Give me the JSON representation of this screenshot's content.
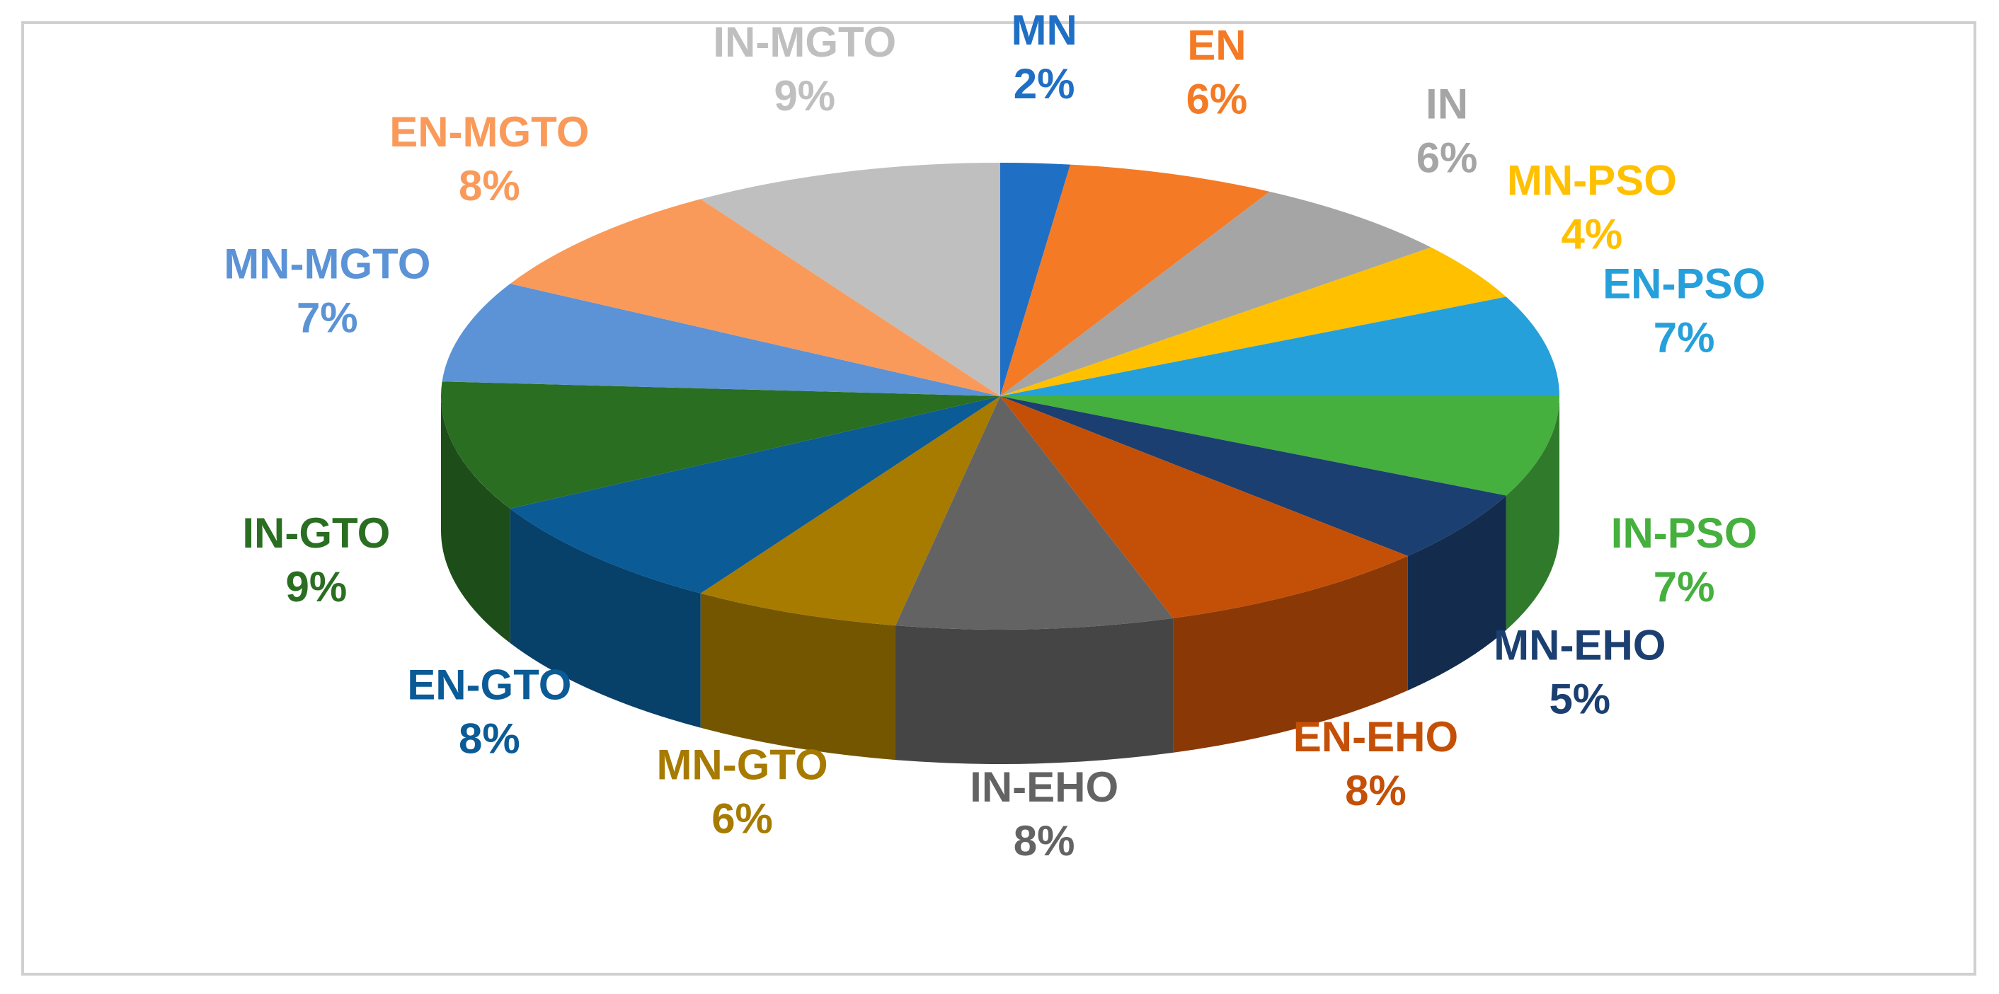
{
  "chart_data": {
    "type": "pie",
    "categories": [
      "MN",
      "EN",
      "IN",
      "MN-PSO",
      "EN-PSO",
      "IN-PSO",
      "MN-EHO",
      "EN-EHO",
      "IN-EHO",
      "MN-GTO",
      "EN-GTO",
      "IN-GTO",
      "MN-MGTO",
      "EN-MGTO",
      "IN-MGTO"
    ],
    "values": [
      2,
      6,
      6,
      4,
      7,
      7,
      5,
      8,
      8,
      6,
      8,
      9,
      7,
      8,
      9
    ],
    "value_labels": [
      "2%",
      "6%",
      "6%",
      "4%",
      "7%",
      "7%",
      "5%",
      "8%",
      "8%",
      "6%",
      "8%",
      "9%",
      "7%",
      "8%",
      "9%"
    ],
    "colors": [
      "#1f6fc5",
      "#f47a25",
      "#a5a5a5",
      "#ffc000",
      "#26a0da",
      "#45b03d",
      "#1b3f70",
      "#c45008",
      "#636363",
      "#a67b00",
      "#0a5b96",
      "#2a6e22",
      "#5b93d6",
      "#f99a5a",
      "#bfbfbf"
    ]
  }
}
